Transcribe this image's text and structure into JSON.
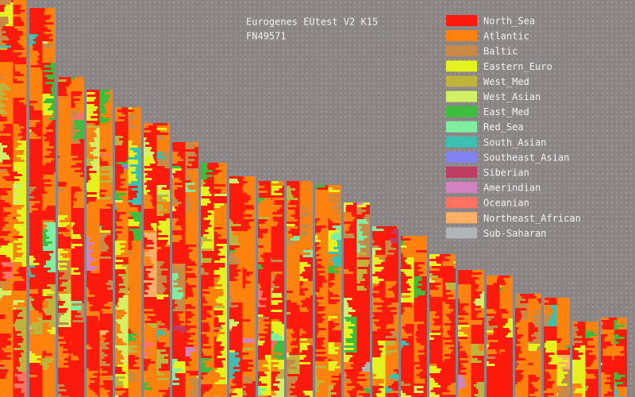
{
  "header": {
    "title": "Eurogenes EUtest V2 K15",
    "sample": "FN49571"
  },
  "legend": [
    {
      "label": "North_Sea",
      "color": "#ff1a0e"
    },
    {
      "label": "Atlantic",
      "color": "#ff820f"
    },
    {
      "label": "Baltic",
      "color": "#c88a44"
    },
    {
      "label": "Eastern_Euro",
      "color": "#e6f21e"
    },
    {
      "label": "West_Med",
      "color": "#beb43c"
    },
    {
      "label": "West_Asian",
      "color": "#d2f064"
    },
    {
      "label": "East_Med",
      "color": "#3cbe3c"
    },
    {
      "label": "Red_Sea",
      "color": "#7cf0a0"
    },
    {
      "label": "South_Asian",
      "color": "#3cc0b0"
    },
    {
      "label": "Southeast_Asian",
      "color": "#8282f0"
    },
    {
      "label": "Siberian",
      "color": "#be3c62"
    },
    {
      "label": "Amerindian",
      "color": "#d282be"
    },
    {
      "label": "Oceanian",
      "color": "#ff7262"
    },
    {
      "label": "Northeast_African",
      "color": "#ffb064"
    },
    {
      "label": "Sub-Saharan",
      "color": "#b0b6b8"
    }
  ]
}
